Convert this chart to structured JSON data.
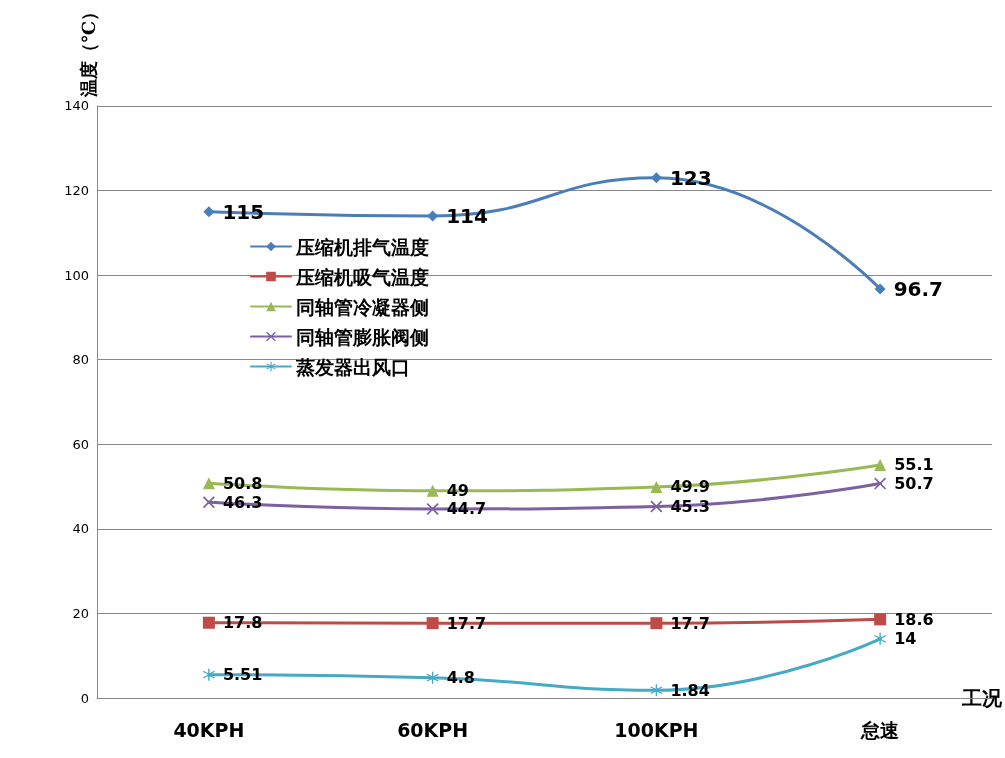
{
  "chart_data": {
    "type": "line",
    "ylabel": "温度（℃）",
    "xlabel": "工况",
    "categories": [
      "40KPH",
      "60KPH",
      "100KPH",
      "怠速"
    ],
    "series": [
      {
        "name": "压缩机排气温度",
        "color": "#4a7ebb",
        "marker": "diamond",
        "values": [
          115,
          114,
          123,
          96.7
        ]
      },
      {
        "name": "压缩机吸气温度",
        "color": "#be4b48",
        "marker": "square",
        "values": [
          17.8,
          17.7,
          17.7,
          18.6
        ]
      },
      {
        "name": "同轴管冷凝器侧",
        "color": "#98b954",
        "marker": "triangle",
        "values": [
          50.8,
          49,
          49.9,
          55.1
        ]
      },
      {
        "name": "同轴管膨胀阀侧",
        "color": "#7d60a0",
        "marker": "cross",
        "values": [
          46.3,
          44.7,
          45.3,
          50.7
        ]
      },
      {
        "name": "蒸发器出风口",
        "color": "#46aac5",
        "marker": "star",
        "values": [
          5.51,
          4.8,
          1.84,
          14
        ]
      }
    ],
    "ylim": [
      0,
      140
    ],
    "yticks": [
      0,
      20,
      40,
      60,
      80,
      100,
      120,
      140
    ],
    "grid": "y",
    "legend": "left",
    "data_labels": true,
    "line_style": "solid"
  }
}
